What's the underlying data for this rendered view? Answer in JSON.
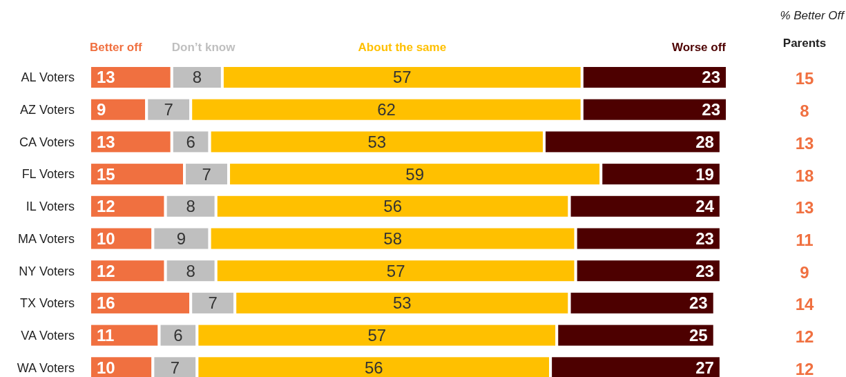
{
  "chart_data": {
    "type": "bar",
    "orientation": "horizontal",
    "stacked": true,
    "data_labels": true,
    "legend": "top",
    "categories": [
      "AL Voters",
      "AZ Voters",
      "CA Voters",
      "FL Voters",
      "IL Voters",
      "MA Voters",
      "NY Voters",
      "TX Voters",
      "VA Voters",
      "WA Voters"
    ],
    "series": [
      {
        "name": "Better off",
        "color": "#f07040",
        "values": [
          13,
          9,
          13,
          15,
          12,
          10,
          12,
          16,
          11,
          10
        ]
      },
      {
        "name": "Don’t know",
        "color": "#bfbfbf",
        "values": [
          8,
          7,
          6,
          7,
          8,
          9,
          8,
          7,
          6,
          7
        ]
      },
      {
        "name": "About the same",
        "color": "#ffc000",
        "values": [
          57,
          62,
          53,
          59,
          56,
          58,
          57,
          53,
          57,
          56
        ]
      },
      {
        "name": "Worse off",
        "color": "#4d0000",
        "values": [
          23,
          23,
          28,
          19,
          24,
          23,
          23,
          23,
          25,
          27
        ]
      }
    ],
    "annotations": [
      "% Better Off",
      "Parents",
      "15",
      "8",
      "13",
      "18",
      "13",
      "11",
      "9",
      "14",
      "12",
      "12"
    ]
  }
}
